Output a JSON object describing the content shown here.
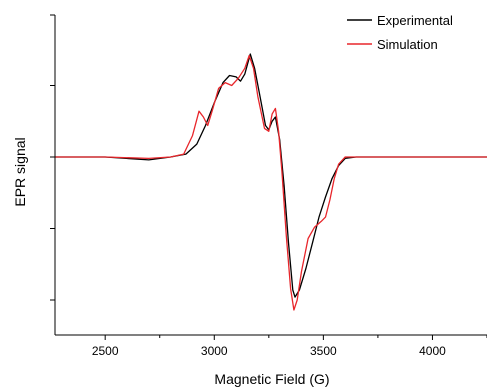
{
  "chart_data": {
    "type": "line",
    "title": "",
    "xlabel": "Magnetic Field (G)",
    "ylabel": "EPR signal",
    "xlim": [
      2270,
      4250
    ],
    "ylim": [
      -1.25,
      1.0
    ],
    "x_ticks": [
      2500,
      3000,
      3500,
      4000
    ],
    "y_tick_labels_shown": false,
    "grid": false,
    "legend": {
      "position": "top-right"
    },
    "series": [
      {
        "name": "Experimental",
        "color": "#000000",
        "points": [
          [
            2270,
            0.0
          ],
          [
            2500,
            0.0
          ],
          [
            2700,
            -0.02
          ],
          [
            2800,
            0.0
          ],
          [
            2870,
            0.02
          ],
          [
            2920,
            0.09
          ],
          [
            2960,
            0.22
          ],
          [
            3000,
            0.38
          ],
          [
            3040,
            0.52
          ],
          [
            3070,
            0.57
          ],
          [
            3100,
            0.56
          ],
          [
            3120,
            0.53
          ],
          [
            3140,
            0.58
          ],
          [
            3165,
            0.72
          ],
          [
            3185,
            0.62
          ],
          [
            3210,
            0.42
          ],
          [
            3235,
            0.22
          ],
          [
            3250,
            0.19
          ],
          [
            3265,
            0.25
          ],
          [
            3280,
            0.28
          ],
          [
            3300,
            0.12
          ],
          [
            3320,
            -0.2
          ],
          [
            3340,
            -0.6
          ],
          [
            3360,
            -0.93
          ],
          [
            3370,
            -0.98
          ],
          [
            3390,
            -0.93
          ],
          [
            3420,
            -0.78
          ],
          [
            3450,
            -0.6
          ],
          [
            3480,
            -0.42
          ],
          [
            3510,
            -0.28
          ],
          [
            3540,
            -0.15
          ],
          [
            3570,
            -0.06
          ],
          [
            3600,
            -0.01
          ],
          [
            3650,
            0.0
          ],
          [
            4250,
            0.0
          ]
        ]
      },
      {
        "name": "Simulation",
        "color": "#e8262b",
        "points": [
          [
            2270,
            0.0
          ],
          [
            2500,
            0.0
          ],
          [
            2700,
            -0.01
          ],
          [
            2800,
            0.0
          ],
          [
            2860,
            0.02
          ],
          [
            2900,
            0.15
          ],
          [
            2930,
            0.32
          ],
          [
            2950,
            0.28
          ],
          [
            2970,
            0.22
          ],
          [
            2990,
            0.32
          ],
          [
            3020,
            0.48
          ],
          [
            3050,
            0.52
          ],
          [
            3080,
            0.5
          ],
          [
            3110,
            0.55
          ],
          [
            3140,
            0.62
          ],
          [
            3160,
            0.71
          ],
          [
            3180,
            0.62
          ],
          [
            3200,
            0.42
          ],
          [
            3230,
            0.2
          ],
          [
            3250,
            0.18
          ],
          [
            3265,
            0.3
          ],
          [
            3280,
            0.34
          ],
          [
            3295,
            0.18
          ],
          [
            3310,
            -0.1
          ],
          [
            3330,
            -0.55
          ],
          [
            3350,
            -0.92
          ],
          [
            3365,
            -1.07
          ],
          [
            3380,
            -1.0
          ],
          [
            3400,
            -0.8
          ],
          [
            3430,
            -0.57
          ],
          [
            3460,
            -0.49
          ],
          [
            3490,
            -0.45
          ],
          [
            3510,
            -0.42
          ],
          [
            3530,
            -0.3
          ],
          [
            3550,
            -0.15
          ],
          [
            3570,
            -0.05
          ],
          [
            3600,
            0.0
          ],
          [
            4250,
            0.0
          ]
        ]
      }
    ]
  }
}
